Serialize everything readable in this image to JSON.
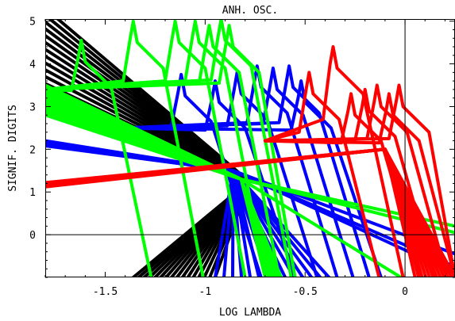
{
  "chart_data": {
    "type": "line",
    "title": "ANH. OSC.",
    "xlabel": "LOG LAMBDA",
    "ylabel": "SIGNIF. DIGITS",
    "xlim": [
      -1.8,
      0.25
    ],
    "ylim": [
      -1.0,
      5.05
    ],
    "xticks_major": [
      -1.5,
      -1.0,
      -0.5,
      0.0
    ],
    "xtick_labels": [
      "-1.5",
      "-1",
      "-0.5",
      "0"
    ],
    "yticks_major": [
      0,
      1,
      2,
      3,
      4,
      5
    ],
    "ytick_labels": [
      "0",
      "1",
      "2",
      "3",
      "4",
      "5"
    ],
    "reference_lines": {
      "x": 0.0,
      "y": 0.0
    },
    "grid": false,
    "colors": {
      "black": "#000000",
      "blue": "#0000ff",
      "green": "#00ff00",
      "red": "#ff0000"
    },
    "series": [
      {
        "color": "black",
        "kind": "fan",
        "n": 16,
        "pivot": [
          -0.78,
          1.25
        ],
        "x_start": -1.8,
        "y_start_range": [
          2.9,
          5.3
        ],
        "x_end_range": [
          -1.36,
          -0.95
        ],
        "y_end": -1.0
      },
      {
        "color": "blue",
        "kind": "fan",
        "n": 14,
        "pivot": [
          -0.86,
          1.5
        ],
        "x_start": -1.8,
        "y_start_range": [
          2.08,
          2.2
        ],
        "x_end_range": [
          -0.95,
          -0.38
        ],
        "y_end": -1.0
      },
      {
        "color": "blue",
        "kind": "peaks",
        "x_peaks": [
          -1.12,
          -0.95,
          -0.84,
          -0.74,
          -0.66,
          -0.58,
          -0.52
        ],
        "y_peaks": [
          3.75,
          3.6,
          3.8,
          3.95,
          3.9,
          3.95,
          3.6
        ]
      },
      {
        "color": "blue",
        "kind": "tails",
        "points": [
          [
            0.25,
            -0.45
          ],
          [
            0.25,
            -0.75
          ],
          [
            0.25,
            -0.9
          ]
        ]
      },
      {
        "color": "green",
        "kind": "fan",
        "n": 13,
        "pivot": [
          -0.82,
          1.3
        ],
        "x_start": -1.8,
        "y_start_range": [
          2.8,
          3.5
        ],
        "x_end_range": [
          -0.7,
          -0.62
        ],
        "y_end": -1.0
      },
      {
        "color": "green",
        "kind": "peaks",
        "x_peaks": [
          -1.62,
          -1.36,
          -1.15,
          -1.05,
          -0.98,
          -0.92,
          -0.88
        ],
        "y_peaks": [
          4.55,
          5.0,
          5.0,
          5.0,
          4.9,
          5.05,
          4.9
        ]
      },
      {
        "color": "green",
        "kind": "tails",
        "points": [
          [
            0.25,
            0.2
          ],
          [
            0.25,
            0.05
          ],
          [
            -0.02,
            -1.0
          ]
        ]
      },
      {
        "color": "red",
        "kind": "fan",
        "n": 12,
        "pivot": [
          -0.1,
          2.0
        ],
        "x_start": -1.8,
        "y_start_range": [
          1.12,
          1.22
        ],
        "x_end_range": [
          0.05,
          0.25
        ],
        "y_end": -1.0
      },
      {
        "color": "red",
        "kind": "peaks",
        "x_peaks": [
          -0.48,
          -0.36,
          -0.27,
          -0.2,
          -0.14,
          -0.08,
          -0.03
        ],
        "y_peaks": [
          3.8,
          4.4,
          3.3,
          3.4,
          3.5,
          3.3,
          3.5
        ]
      }
    ]
  }
}
